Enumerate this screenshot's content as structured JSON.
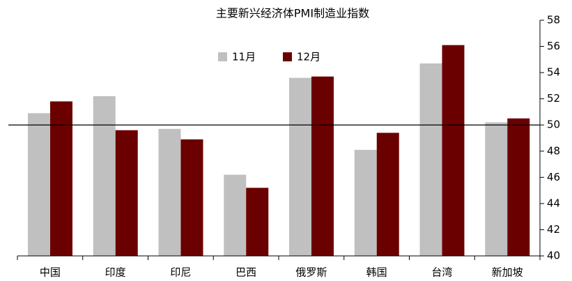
{
  "chart_data": {
    "type": "bar",
    "title": "主要新兴经济体PMI制造业指数",
    "categories": [
      "中国",
      "印度",
      "印尼",
      "巴西",
      "俄罗斯",
      "韩国",
      "台湾",
      "新加坡"
    ],
    "series": [
      {
        "name": "11月",
        "color": "#c0c0c0",
        "values": [
          50.9,
          52.2,
          49.7,
          46.2,
          53.6,
          48.1,
          54.7,
          50.2
        ]
      },
      {
        "name": "12月",
        "color": "#6b0000",
        "values": [
          51.8,
          49.6,
          48.9,
          45.2,
          53.7,
          49.4,
          56.1,
          50.5
        ]
      }
    ],
    "ylim": [
      40,
      58
    ],
    "yticks": [
      40,
      42,
      44,
      46,
      48,
      50,
      52,
      54,
      56,
      58
    ],
    "reference_line": 50,
    "grid": false
  }
}
